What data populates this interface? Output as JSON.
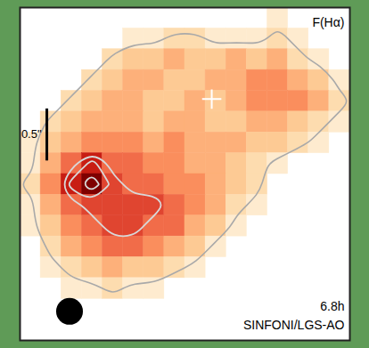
{
  "chart_data": {
    "type": "heatmap",
    "title": "F(Hα)",
    "annotations": [
      "6.8h",
      "SINFONI/LGS-AO"
    ],
    "tick_labels": false,
    "grid": false,
    "xlim": [
      0,
      16
    ],
    "ylim": [
      0,
      16
    ],
    "cells": [
      [
        0,
        0,
        0,
        0,
        0,
        0,
        0,
        0,
        0,
        0,
        0,
        0,
        1,
        0,
        0,
        0
      ],
      [
        0,
        0,
        0,
        0,
        0,
        1,
        1,
        2,
        2,
        1,
        1,
        1,
        2,
        1,
        0,
        0
      ],
      [
        0,
        0,
        0,
        0,
        2,
        3,
        3,
        4,
        3,
        3,
        4,
        3,
        4,
        2,
        1,
        0
      ],
      [
        0,
        0,
        0,
        2,
        3,
        4,
        4,
        3,
        3,
        4,
        4,
        5,
        5,
        4,
        3,
        1
      ],
      [
        0,
        0,
        2,
        3,
        4,
        4,
        3,
        3,
        4,
        3,
        4,
        5,
        5,
        5,
        4,
        2
      ],
      [
        0,
        2,
        3,
        4,
        4,
        4,
        3,
        4,
        4,
        3,
        3,
        4,
        4,
        3,
        2,
        1
      ],
      [
        1,
        3,
        4,
        5,
        5,
        5,
        4,
        5,
        4,
        4,
        4,
        3,
        3,
        2,
        1,
        0
      ],
      [
        1,
        4,
        6,
        8,
        6,
        6,
        5,
        5,
        4,
        4,
        3,
        2,
        1,
        0,
        0,
        0
      ],
      [
        2,
        5,
        8,
        10,
        7,
        6,
        6,
        5,
        5,
        4,
        3,
        2,
        0,
        0,
        0,
        0
      ],
      [
        1,
        4,
        6,
        7,
        7,
        7,
        7,
        6,
        5,
        4,
        2,
        1,
        0,
        0,
        0,
        0
      ],
      [
        1,
        3,
        5,
        6,
        7,
        7,
        6,
        6,
        4,
        3,
        1,
        0,
        0,
        0,
        0,
        0
      ],
      [
        0,
        2,
        4,
        5,
        6,
        6,
        5,
        4,
        3,
        1,
        0,
        0,
        0,
        0,
        0,
        0
      ],
      [
        0,
        1,
        2,
        3,
        4,
        3,
        3,
        2,
        1,
        0,
        0,
        0,
        0,
        0,
        0,
        0
      ],
      [
        0,
        0,
        1,
        1,
        2,
        1,
        1,
        0,
        0,
        0,
        0,
        0,
        0,
        0,
        0,
        0
      ],
      [
        0,
        0,
        0,
        0,
        0,
        0,
        0,
        0,
        0,
        0,
        0,
        0,
        0,
        0,
        0,
        0
      ],
      [
        0,
        0,
        0,
        0,
        0,
        0,
        0,
        0,
        0,
        0,
        0,
        0,
        0,
        0,
        0,
        0
      ]
    ],
    "contour_levels": [
      1.5,
      6.5,
      7.5,
      9
    ],
    "center": {
      "x": 9.3,
      "y": 4.4,
      "marker": "cross"
    },
    "scale_bar": {
      "label": "0.5\"",
      "x": 1.3,
      "y": 6.1,
      "length": 2.5
    },
    "beam": {
      "x": 2.4,
      "y": 14.6,
      "diameter": 1.3
    }
  }
}
